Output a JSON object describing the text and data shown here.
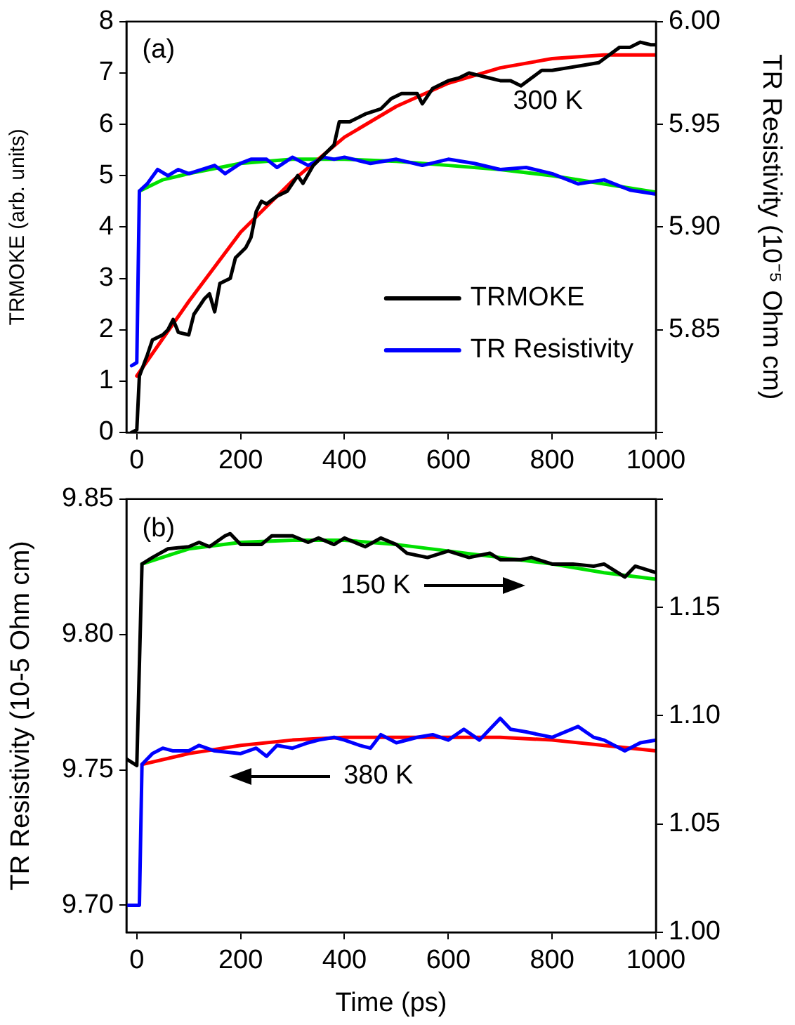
{
  "chart_data": [
    {
      "type": "line",
      "ylabel": "TRMOKE (arb. units)",
      "y2label": "TR Resistivity (10⁻⁵ Ohm cm)",
      "xlim": [
        -20,
        1000
      ],
      "xticks": [
        0,
        200,
        400,
        600,
        800,
        1000
      ],
      "ylim": [
        0,
        8
      ],
      "yticks": [
        0,
        1,
        2,
        3,
        4,
        5,
        6,
        7,
        8
      ],
      "y2lim": [
        5.8,
        6.0
      ],
      "y2ticks": [
        {
          "value": 5.8,
          "label": null
        },
        {
          "value": 5.85,
          "label": "5.85"
        },
        {
          "value": 5.9,
          "label": "5.90"
        },
        {
          "value": 5.95,
          "label": "5.95"
        },
        {
          "value": 6.0,
          "label": "6.00"
        }
      ],
      "grid": false,
      "legend": "bottom right",
      "marker": "none",
      "annotations": [
        "(a)",
        "300 K"
      ],
      "series": [
        {
          "name": "TRMOKE",
          "color": "#000000",
          "x": [
            -10,
            0,
            5,
            20,
            30,
            50,
            60,
            70,
            80,
            100,
            110,
            130,
            140,
            150,
            160,
            180,
            190,
            210,
            220,
            230,
            240,
            250,
            270,
            290,
            310,
            320,
            340,
            360,
            380,
            390,
            410,
            440,
            470,
            490,
            510,
            540,
            550,
            570,
            600,
            620,
            640,
            660,
            680,
            700,
            720,
            740,
            760,
            780,
            800,
            830,
            860,
            890,
            910,
            930,
            950,
            970,
            990,
            1000
          ],
          "values": [
            0,
            0.05,
            1.1,
            1.5,
            1.8,
            1.9,
            2.0,
            2.2,
            1.95,
            1.9,
            2.3,
            2.6,
            2.7,
            2.35,
            2.9,
            3.0,
            3.4,
            3.6,
            3.8,
            4.3,
            4.5,
            4.45,
            4.6,
            4.7,
            5.0,
            4.85,
            5.2,
            5.4,
            5.6,
            6.05,
            6.05,
            6.2,
            6.3,
            6.5,
            6.6,
            6.6,
            6.4,
            6.7,
            6.85,
            6.9,
            7.0,
            6.95,
            6.9,
            6.85,
            6.85,
            6.75,
            6.9,
            7.05,
            7.05,
            7.1,
            7.15,
            7.2,
            7.35,
            7.5,
            7.5,
            7.6,
            7.55,
            7.55
          ]
        },
        {
          "name": "TR Resistivity",
          "color": "#0000ff",
          "axis": "y2",
          "x": [
            -10,
            0,
            5,
            20,
            40,
            60,
            80,
            100,
            150,
            170,
            200,
            220,
            250,
            270,
            300,
            330,
            360,
            380,
            400,
            450,
            500,
            550,
            600,
            650,
            700,
            750,
            800,
            850,
            900,
            950,
            1000
          ],
          "values": [
            5.8325,
            5.834,
            5.9175,
            5.921,
            5.928,
            5.925,
            5.928,
            5.926,
            5.93,
            5.926,
            5.931,
            5.933,
            5.933,
            5.929,
            5.934,
            5.93,
            5.934,
            5.933,
            5.934,
            5.931,
            5.933,
            5.93,
            5.933,
            5.931,
            5.928,
            5.929,
            5.926,
            5.921,
            5.923,
            5.918,
            5.916
          ]
        },
        {
          "type": "line",
          "color": "#ff0000",
          "x": [
            0,
            100,
            200,
            300,
            400,
            500,
            600,
            700,
            800,
            900,
            1000
          ],
          "values": [
            1.1,
            2.55,
            3.9,
            4.9,
            5.75,
            6.35,
            6.8,
            7.1,
            7.28,
            7.35,
            7.35
          ]
        },
        {
          "type": "line",
          "color": "#00e000",
          "axis": "y2",
          "x": [
            5,
            50,
            100,
            200,
            300,
            400,
            500,
            600,
            700,
            800,
            900,
            1000
          ],
          "values": [
            5.9175,
            5.923,
            5.926,
            5.931,
            5.933,
            5.933,
            5.932,
            5.93,
            5.928,
            5.925,
            5.921,
            5.917
          ]
        }
      ]
    },
    {
      "type": "line",
      "xlabel": "Time (ps)",
      "ylabel": "TR Resistivity (10-5 Ohm cm)",
      "xlim": [
        -20,
        1000
      ],
      "xticks": [
        0,
        200,
        400,
        600,
        800,
        1000
      ],
      "ylim": [
        9.69,
        9.85
      ],
      "yticks": [
        {
          "value": 9.7,
          "label": "9.70"
        },
        {
          "value": 9.75,
          "label": "9.75"
        },
        {
          "value": 9.8,
          "label": "9.80"
        },
        {
          "value": 9.85,
          "label": "9.85"
        }
      ],
      "y2lim": [
        1.0,
        1.2
      ],
      "y2ticks": [
        {
          "value": 1.0,
          "label": "1.00"
        },
        {
          "value": 1.05,
          "label": "1.05"
        },
        {
          "value": 1.1,
          "label": "1.10"
        },
        {
          "value": 1.15,
          "label": "1.15"
        },
        {
          "value": 1.2,
          "label": null
        }
      ],
      "grid": false,
      "marker": "none",
      "annotations": [
        "(b)",
        "150 K",
        "380 K"
      ],
      "series": [
        {
          "color": "#000000",
          "axis": "y2",
          "x": [
            -20,
            0,
            10,
            30,
            60,
            100,
            120,
            140,
            170,
            180,
            200,
            240,
            260,
            300,
            330,
            350,
            380,
            400,
            440,
            470,
            500,
            520,
            560,
            600,
            640,
            680,
            700,
            740,
            760,
            800,
            840,
            880,
            900,
            940,
            960,
            1000
          ],
          "values": [
            1.08,
            1.077,
            1.17,
            1.173,
            1.177,
            1.178,
            1.18,
            1.178,
            1.183,
            1.184,
            1.179,
            1.179,
            1.183,
            1.183,
            1.18,
            1.182,
            1.179,
            1.182,
            1.178,
            1.182,
            1.179,
            1.175,
            1.173,
            1.176,
            1.173,
            1.175,
            1.172,
            1.172,
            1.173,
            1.17,
            1.17,
            1.169,
            1.17,
            1.164,
            1.169,
            1.166
          ]
        },
        {
          "color": "#00e000",
          "axis": "y2",
          "x": [
            10,
            100,
            200,
            300,
            400,
            500,
            600,
            700,
            800,
            900,
            1000
          ],
          "values": [
            1.17,
            1.177,
            1.18,
            1.181,
            1.181,
            1.179,
            1.176,
            1.173,
            1.17,
            1.166,
            1.163
          ]
        },
        {
          "color": "#0000ff",
          "x": [
            -20,
            5,
            10,
            30,
            50,
            70,
            100,
            120,
            150,
            200,
            230,
            250,
            270,
            300,
            330,
            350,
            380,
            400,
            430,
            450,
            470,
            500,
            540,
            570,
            600,
            630,
            660,
            700,
            720,
            750,
            800,
            850,
            880,
            900,
            940,
            970,
            1000
          ],
          "values": [
            9.7,
            9.7,
            9.752,
            9.756,
            9.758,
            9.757,
            9.757,
            9.759,
            9.757,
            9.756,
            9.758,
            9.755,
            9.759,
            9.758,
            9.76,
            9.761,
            9.762,
            9.761,
            9.759,
            9.758,
            9.763,
            9.76,
            9.762,
            9.763,
            9.761,
            9.765,
            9.761,
            9.769,
            9.765,
            9.764,
            9.762,
            9.766,
            9.762,
            9.761,
            9.757,
            9.76,
            9.761
          ]
        },
        {
          "color": "#ff0000",
          "x": [
            10,
            100,
            200,
            300,
            400,
            500,
            600,
            700,
            800,
            900,
            1000
          ],
          "values": [
            9.752,
            9.756,
            9.759,
            9.761,
            9.762,
            9.762,
            9.762,
            9.762,
            9.761,
            9.759,
            9.757
          ]
        }
      ]
    }
  ]
}
